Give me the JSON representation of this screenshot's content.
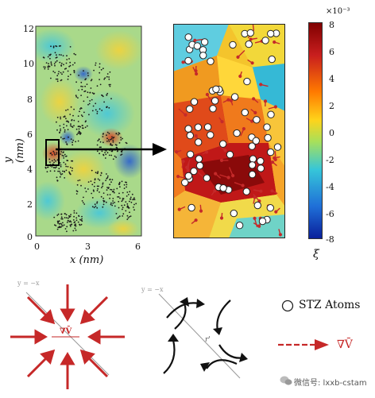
{
  "left_plot": {
    "y_ticks": [
      "12",
      "10",
      "8",
      "6",
      "4",
      "2",
      "0"
    ],
    "x_ticks": [
      "0",
      "3",
      "6"
    ],
    "y_label": "y (nm)",
    "x_label": "x (nm)"
  },
  "colorbar": {
    "ticks": [
      "8",
      "6",
      "4",
      "2",
      "0",
      "-2",
      "-4",
      "-6",
      "-8"
    ],
    "exponent": "×10⁻³",
    "label": "ξ",
    "colors": [
      "#7f0000",
      "#c81e1e",
      "#ff7a00",
      "#ffd31a",
      "#a8e05a",
      "#36c6d9",
      "#1f6fd8",
      "#0a1f9a"
    ]
  },
  "schematic": {
    "left_axis_label": "y = −x",
    "middle_axis_label": "y = −x",
    "grad_label": "∇V̄",
    "middle_vector_label": "r'",
    "legend_stz": "STZ Atoms",
    "legend_grad": "∇V̄",
    "arrow_color": "#c62828"
  },
  "watermark": "微信号: lxxb-cstam"
}
